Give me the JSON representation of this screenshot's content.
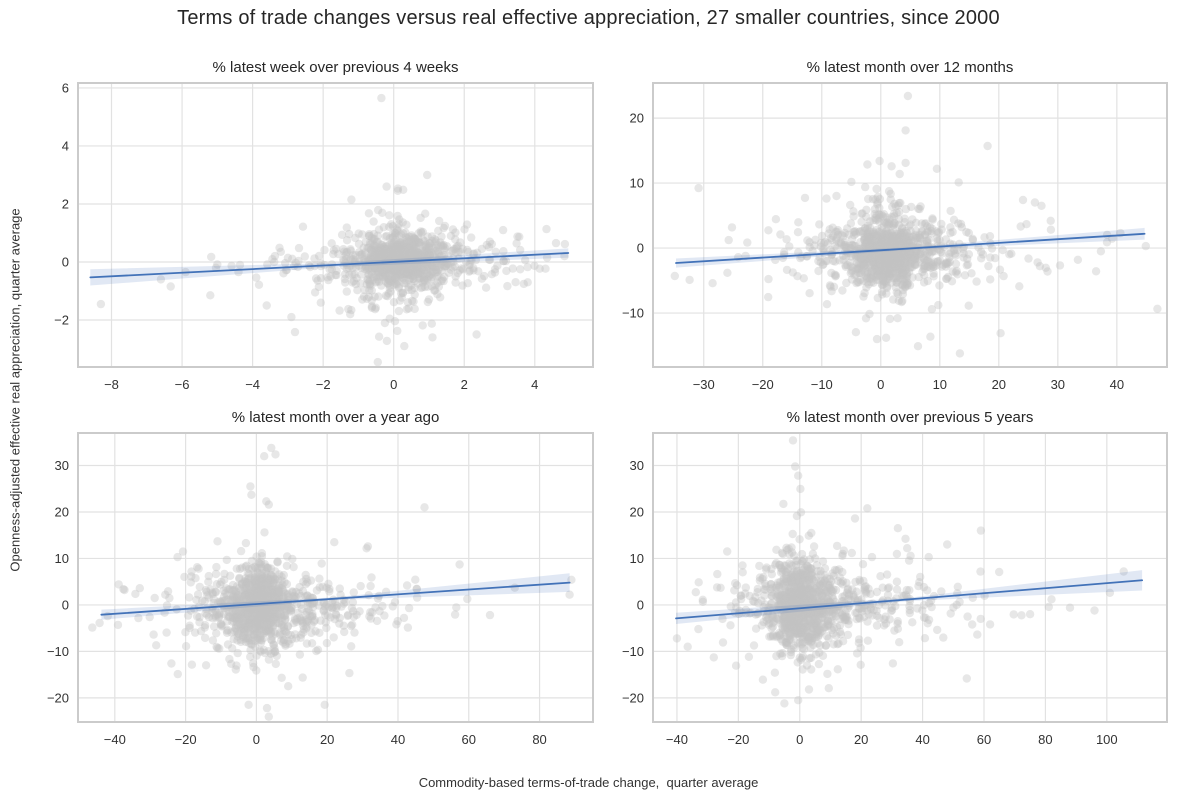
{
  "figure": {
    "title": "Terms of trade changes versus real effective appreciation, 27 smaller countries, since 2000",
    "xlabel": "Commodity-based terms-of-trade change,  quarter average",
    "ylabel": "Openness-adjusted effective real appreciation, quarter average"
  },
  "colors": {
    "background": "#ffffff",
    "point": "#c2c2c2",
    "regression_line": "#4272b8",
    "regression_band_opacity": 0.16,
    "grid": "#e2e2e2",
    "spine": "#cbcbcb",
    "tick_label": "#333333",
    "title_text": "#262626"
  },
  "chart_data": {
    "type": "scatter",
    "title": "Terms of trade changes versus real effective appreciation, 27 smaller countries, since 2000",
    "xlabel": "Commodity-based terms-of-trade change,  quarter average",
    "ylabel": "Openness-adjusted effective real appreciation, quarter average",
    "grid": true,
    "legend": false,
    "panels": [
      {
        "title": "% latest week over previous 4 weeks",
        "xlim": [
          -8.95,
          5.65
        ],
        "ylim": [
          -3.62,
          6.17
        ],
        "xticks": [
          -8,
          -6,
          -4,
          -2,
          0,
          2,
          4
        ],
        "yticks": [
          -2,
          0,
          2,
          4,
          6
        ],
        "regression": {
          "x": [
            -8.6,
            4.95
          ],
          "y": [
            -0.53,
            0.31
          ],
          "band_half_width": [
            0.28,
            0.07,
            0.16
          ]
        },
        "cloud_clusters": [
          [
            520,
            0.15,
            0.1,
            0.55,
            0.38
          ],
          [
            260,
            0.2,
            0.0,
            1.15,
            0.7
          ],
          [
            130,
            0.1,
            -0.05,
            2.1,
            0.3
          ],
          [
            90,
            0.05,
            0.1,
            0.35,
            1.1
          ],
          [
            45,
            -1.9,
            -0.45,
            1.9,
            0.6
          ],
          [
            30,
            1.9,
            0.3,
            1.4,
            0.55
          ]
        ],
        "outliers": [
          [
            -0.35,
            5.65
          ],
          [
            0.95,
            3.0
          ],
          [
            -8.3,
            -1.45
          ],
          [
            -6.6,
            -0.6
          ],
          [
            -5.2,
            -1.15
          ],
          [
            -4.4,
            -0.35
          ],
          [
            -3.6,
            -1.5
          ],
          [
            -3.2,
            0.35
          ],
          [
            -2.9,
            -1.9
          ],
          [
            4.6,
            0.65
          ],
          [
            4.35,
            0.15
          ],
          [
            -0.45,
            -3.45
          ],
          [
            0.3,
            -2.9
          ],
          [
            2.35,
            -2.5
          ],
          [
            1.1,
            -2.6
          ],
          [
            -1.2,
            2.15
          ],
          [
            -0.2,
            2.6
          ],
          [
            3.1,
            1.1
          ],
          [
            3.8,
            -0.7
          ]
        ],
        "seed": 11
      },
      {
        "title": "% latest month over 12 months",
        "xlim": [
          -38.6,
          48.5
        ],
        "ylim": [
          -18.3,
          25.4
        ],
        "xticks": [
          -30,
          -20,
          -10,
          0,
          10,
          20,
          30,
          40
        ],
        "yticks": [
          -10,
          0,
          10,
          20
        ],
        "regression": {
          "x": [
            -34.7,
            44.7
          ],
          "y": [
            -2.3,
            2.2
          ],
          "band_half_width": [
            0.7,
            0.2,
            0.9
          ]
        },
        "cloud_clusters": [
          [
            500,
            1.0,
            -0.8,
            3.2,
            2.2
          ],
          [
            280,
            1.5,
            -0.5,
            6.5,
            3.8
          ],
          [
            150,
            2.0,
            -0.8,
            12.0,
            2.0
          ],
          [
            90,
            0.0,
            0.5,
            2.5,
            5.5
          ],
          [
            70,
            5.0,
            0.0,
            15.0,
            4.0
          ]
        ],
        "outliers": [
          [
            4.6,
            23.4
          ],
          [
            4.2,
            18.1
          ],
          [
            18.1,
            15.7
          ],
          [
            -0.2,
            13.4
          ],
          [
            4.2,
            13.1
          ],
          [
            3.2,
            11.4
          ],
          [
            9.5,
            12.2
          ],
          [
            13.2,
            10.1
          ],
          [
            24.1,
            7.4
          ],
          [
            44.9,
            0.3
          ],
          [
            37.3,
            -0.5
          ],
          [
            33.4,
            -1.8
          ],
          [
            40.6,
            2.3
          ],
          [
            -34.9,
            -4.3
          ],
          [
            -32.4,
            -4.9
          ],
          [
            -28.5,
            -5.4
          ],
          [
            -22.9,
            -1.2
          ],
          [
            -26.0,
            -3.8
          ],
          [
            6.3,
            -15.1
          ],
          [
            0.9,
            -13.8
          ],
          [
            13.4,
            -16.2
          ],
          [
            20.3,
            -13.1
          ],
          [
            -2.5,
            -10.8
          ],
          [
            28.8,
            4.2
          ]
        ],
        "seed": 22
      },
      {
        "title": "% latest month over a year ago",
        "xlim": [
          -50.4,
          95.1
        ],
        "ylim": [
          -25.2,
          37.0
        ],
        "xticks": [
          -40,
          -20,
          0,
          20,
          40,
          60,
          80
        ],
        "yticks": [
          -20,
          -10,
          0,
          10,
          20,
          30
        ],
        "regression": {
          "x": [
            -43.8,
            88.5
          ],
          "y": [
            -2.1,
            4.8
          ],
          "band_half_width": [
            1.1,
            0.3,
            2.0
          ]
        },
        "cloud_clusters": [
          [
            480,
            0.5,
            -0.5,
            4.2,
            3.8
          ],
          [
            280,
            2.0,
            -1.0,
            9.0,
            5.5
          ],
          [
            170,
            4.0,
            -0.5,
            18.0,
            2.8
          ],
          [
            90,
            0.5,
            1.5,
            3.0,
            8.0
          ],
          [
            80,
            8.0,
            0.0,
            24.0,
            5.0
          ]
        ],
        "outliers": [
          [
            4.2,
            33.8
          ],
          [
            5.4,
            32.4
          ],
          [
            -1.7,
            25.5
          ],
          [
            -1.4,
            23.7
          ],
          [
            2.8,
            22.3
          ],
          [
            3.5,
            21.6
          ],
          [
            47.5,
            21.0
          ],
          [
            57.4,
            8.7
          ],
          [
            -11.0,
            13.7
          ],
          [
            89.0,
            5.4
          ],
          [
            88.5,
            2.2
          ],
          [
            73.0,
            3.7
          ],
          [
            66.0,
            -2.2
          ],
          [
            -44.3,
            -3.9
          ],
          [
            -42.0,
            -2.4
          ],
          [
            -39.1,
            -4.3
          ],
          [
            -28.3,
            -8.7
          ],
          [
            -24.0,
            -12.6
          ],
          [
            -22.2,
            -14.9
          ],
          [
            -14.2,
            -13.0
          ],
          [
            -2.2,
            -21.5
          ],
          [
            3.0,
            -22.2
          ],
          [
            19.3,
            -21.5
          ],
          [
            9.0,
            -17.5
          ],
          [
            31.5,
            12.6
          ],
          [
            22.0,
            13.5
          ]
        ],
        "seed": 33
      },
      {
        "title": "% latest month over previous 5 years",
        "xlim": [
          -47.8,
          119.6
        ],
        "ylim": [
          -25.2,
          37.0
        ],
        "xticks": [
          -40,
          -20,
          0,
          20,
          40,
          60,
          80,
          100
        ],
        "yticks": [
          -20,
          -10,
          0,
          10,
          20,
          30
        ],
        "regression": {
          "x": [
            -40.3,
            111.5
          ],
          "y": [
            -2.9,
            5.3
          ],
          "band_half_width": [
            1.2,
            0.35,
            2.2
          ]
        },
        "cloud_clusters": [
          [
            480,
            0.0,
            -0.5,
            4.8,
            4.2
          ],
          [
            280,
            3.0,
            -1.0,
            10.0,
            6.0
          ],
          [
            180,
            10.0,
            0.0,
            20.0,
            3.2
          ],
          [
            90,
            -1.0,
            1.5,
            3.5,
            8.5
          ],
          [
            80,
            18.0,
            0.5,
            28.0,
            5.5
          ]
        ],
        "outliers": [
          [
            -2.2,
            35.4
          ],
          [
            -1.5,
            29.8
          ],
          [
            -0.5,
            27.8
          ],
          [
            59.0,
            16.0
          ],
          [
            105.5,
            7.2
          ],
          [
            101.0,
            2.6
          ],
          [
            96.0,
            -1.2
          ],
          [
            88.0,
            -0.6
          ],
          [
            82.0,
            1.2
          ],
          [
            75.0,
            -2.0
          ],
          [
            62.0,
            -4.2
          ],
          [
            -40.0,
            -7.2
          ],
          [
            -36.5,
            -9.0
          ],
          [
            -33.0,
            -5.2
          ],
          [
            -28.0,
            -11.3
          ],
          [
            -25.0,
            -8.1
          ],
          [
            -5.0,
            -21.2
          ],
          [
            -0.5,
            -20.5
          ],
          [
            -8.0,
            -18.8
          ],
          [
            3.0,
            -18.2
          ],
          [
            -12.0,
            -16.1
          ],
          [
            35.0,
            12.2
          ],
          [
            42.0,
            10.3
          ],
          [
            48.0,
            13.0
          ],
          [
            22.0,
            20.8
          ],
          [
            18.0,
            18.6
          ]
        ],
        "seed": 44
      }
    ]
  }
}
